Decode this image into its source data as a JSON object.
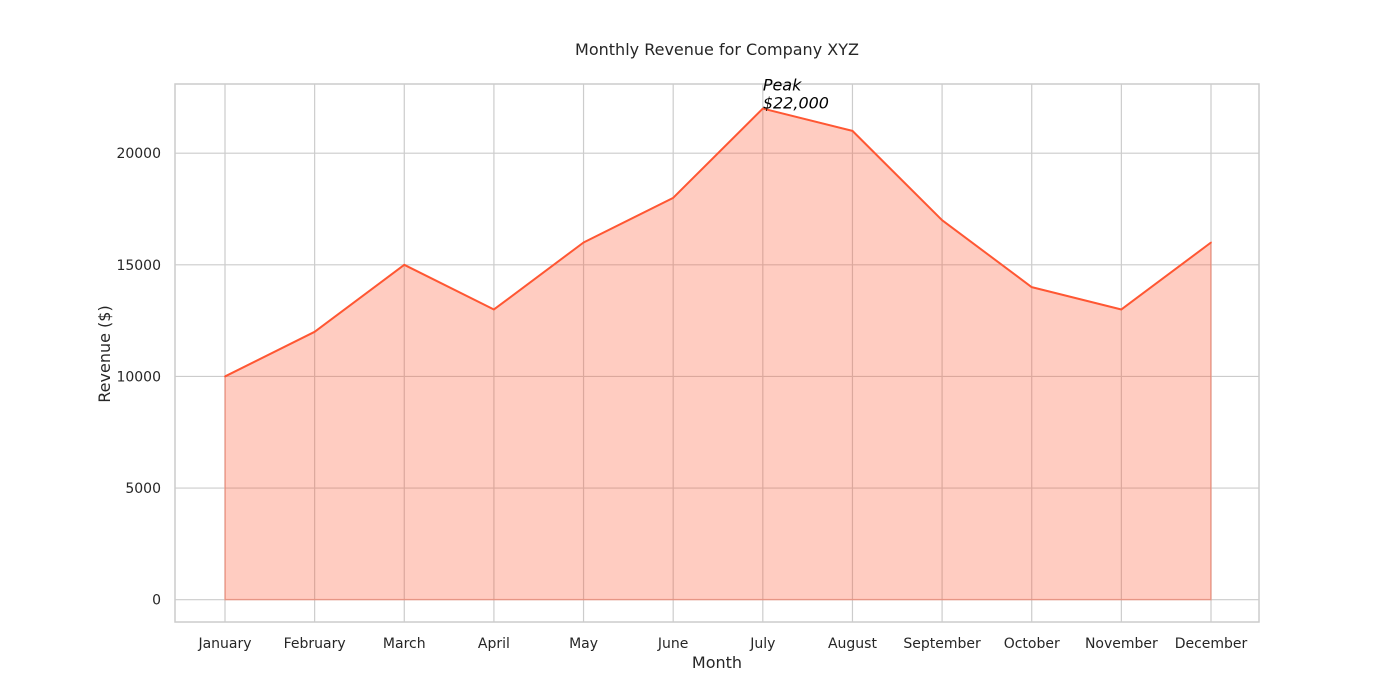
{
  "chart_data": {
    "type": "area",
    "title": "Monthly Revenue for Company XYZ",
    "xlabel": "Month",
    "ylabel": "Revenue ($)",
    "categories": [
      "January",
      "February",
      "March",
      "April",
      "May",
      "June",
      "July",
      "August",
      "September",
      "October",
      "November",
      "December"
    ],
    "values": [
      10000,
      12000,
      15000,
      13000,
      16000,
      18000,
      22000,
      21000,
      17000,
      14000,
      13000,
      16000
    ],
    "ylim": [
      -1000,
      23100
    ],
    "yticks": [
      0,
      5000,
      10000,
      15000,
      20000
    ],
    "ytick_labels": [
      "0",
      "5000",
      "10000",
      "15000",
      "20000"
    ],
    "grid": true,
    "annotation": {
      "category": "July",
      "value": 22000,
      "line1": "Peak",
      "line2": "$22,000"
    },
    "colors": {
      "line": "#ff5733",
      "fill": "#ff5733",
      "grid": "#cccccc",
      "text": "#262626"
    }
  }
}
